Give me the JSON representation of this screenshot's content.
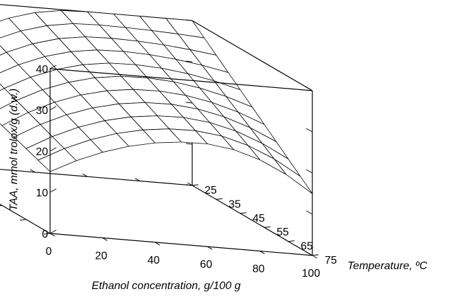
{
  "chart_data": {
    "type": "surface3d",
    "title": "",
    "xlabel": "Ethanol concentration, g/100 g",
    "ylabel": "Temperature, ºC",
    "zlabel": "TAA, mmol trolox/g (d.w.)",
    "x_ticks": [
      "0",
      "20",
      "40",
      "60",
      "80",
      "100"
    ],
    "y_ticks": [
      "25",
      "35",
      "45",
      "55",
      "65",
      "75"
    ],
    "z_ticks": [
      "0",
      "10",
      "20",
      "30",
      "40"
    ],
    "xlim": [
      0,
      100
    ],
    "ylim": [
      25,
      75
    ],
    "zlim": [
      0,
      40
    ],
    "grid": false,
    "surface": {
      "x": [
        0,
        10,
        20,
        30,
        40,
        50,
        60,
        70,
        80,
        90,
        100
      ],
      "y": [
        25,
        30,
        35,
        40,
        45,
        50,
        55,
        60,
        65,
        70,
        75
      ],
      "z_corners": {
        "x0_y25": 26,
        "x0_y75": 15,
        "x100_y25": 40,
        "x100_y75": 15
      },
      "z_max": {
        "x": 57,
        "z_at_y25": 40,
        "z_at_y75": 25
      }
    }
  }
}
